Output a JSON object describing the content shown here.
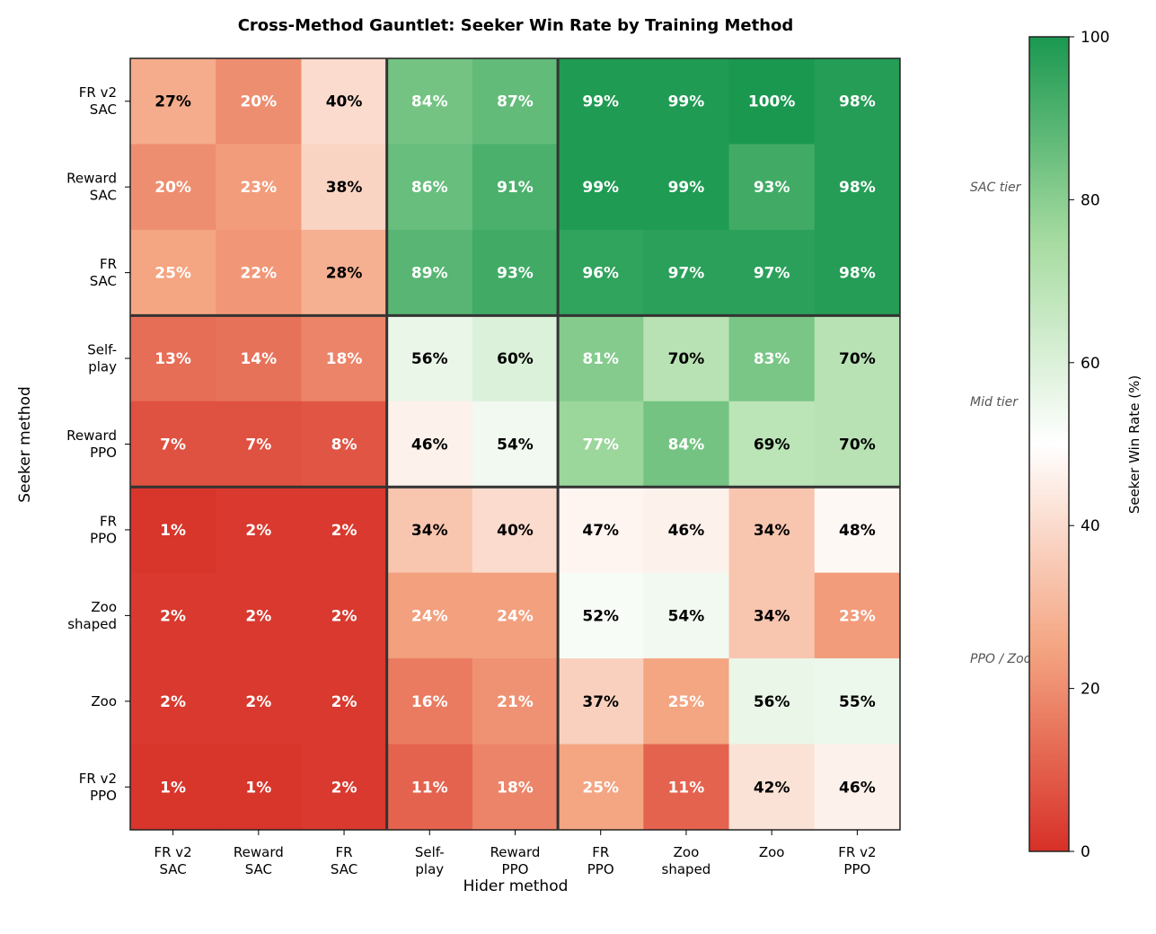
{
  "chart_data": {
    "type": "heatmap",
    "title": "Cross-Method Gauntlet: Seeker Win Rate by Training Method",
    "xlabel": "Hider method",
    "ylabel": "Seeker method",
    "x_categories": [
      "FR v2\nSAC",
      "Reward\nSAC",
      "FR\nSAC",
      "Self-\nplay",
      "Reward\nPPO",
      "FR\nPPO",
      "Zoo\nshaped",
      "Zoo",
      "FR v2\nPPO"
    ],
    "y_categories": [
      "FR v2\nSAC",
      "Reward\nSAC",
      "FR\nSAC",
      "Self-\nplay",
      "Reward\nPPO",
      "FR\nPPO",
      "Zoo\nshaped",
      "Zoo",
      "FR v2\nPPO"
    ],
    "values": [
      [
        27,
        20,
        40,
        84,
        87,
        99,
        99,
        100,
        98
      ],
      [
        20,
        23,
        38,
        86,
        91,
        99,
        99,
        93,
        98
      ],
      [
        25,
        22,
        28,
        89,
        93,
        96,
        97,
        97,
        98
      ],
      [
        13,
        14,
        18,
        56,
        60,
        81,
        70,
        83,
        70
      ],
      [
        7,
        7,
        8,
        46,
        54,
        77,
        84,
        69,
        70
      ],
      [
        1,
        2,
        2,
        34,
        40,
        47,
        46,
        34,
        48
      ],
      [
        2,
        2,
        2,
        24,
        24,
        52,
        54,
        34,
        23
      ],
      [
        2,
        2,
        2,
        16,
        21,
        37,
        25,
        56,
        55
      ],
      [
        1,
        1,
        2,
        11,
        18,
        25,
        11,
        42,
        46
      ]
    ],
    "value_format": "{v}%",
    "tier_boundaries_after_index": [
      3,
      5
    ],
    "tier_labels": [
      "SAC tier",
      "Mid tier",
      "PPO / Zoo tier"
    ],
    "colorbar": {
      "label": "Seeker Win Rate (%)",
      "range": [
        0,
        100
      ],
      "ticks": [
        0,
        20,
        40,
        60,
        80,
        100
      ]
    },
    "colors": {
      "low": "#d73027",
      "mid": "#ffffff",
      "high": "#1a9850"
    }
  }
}
